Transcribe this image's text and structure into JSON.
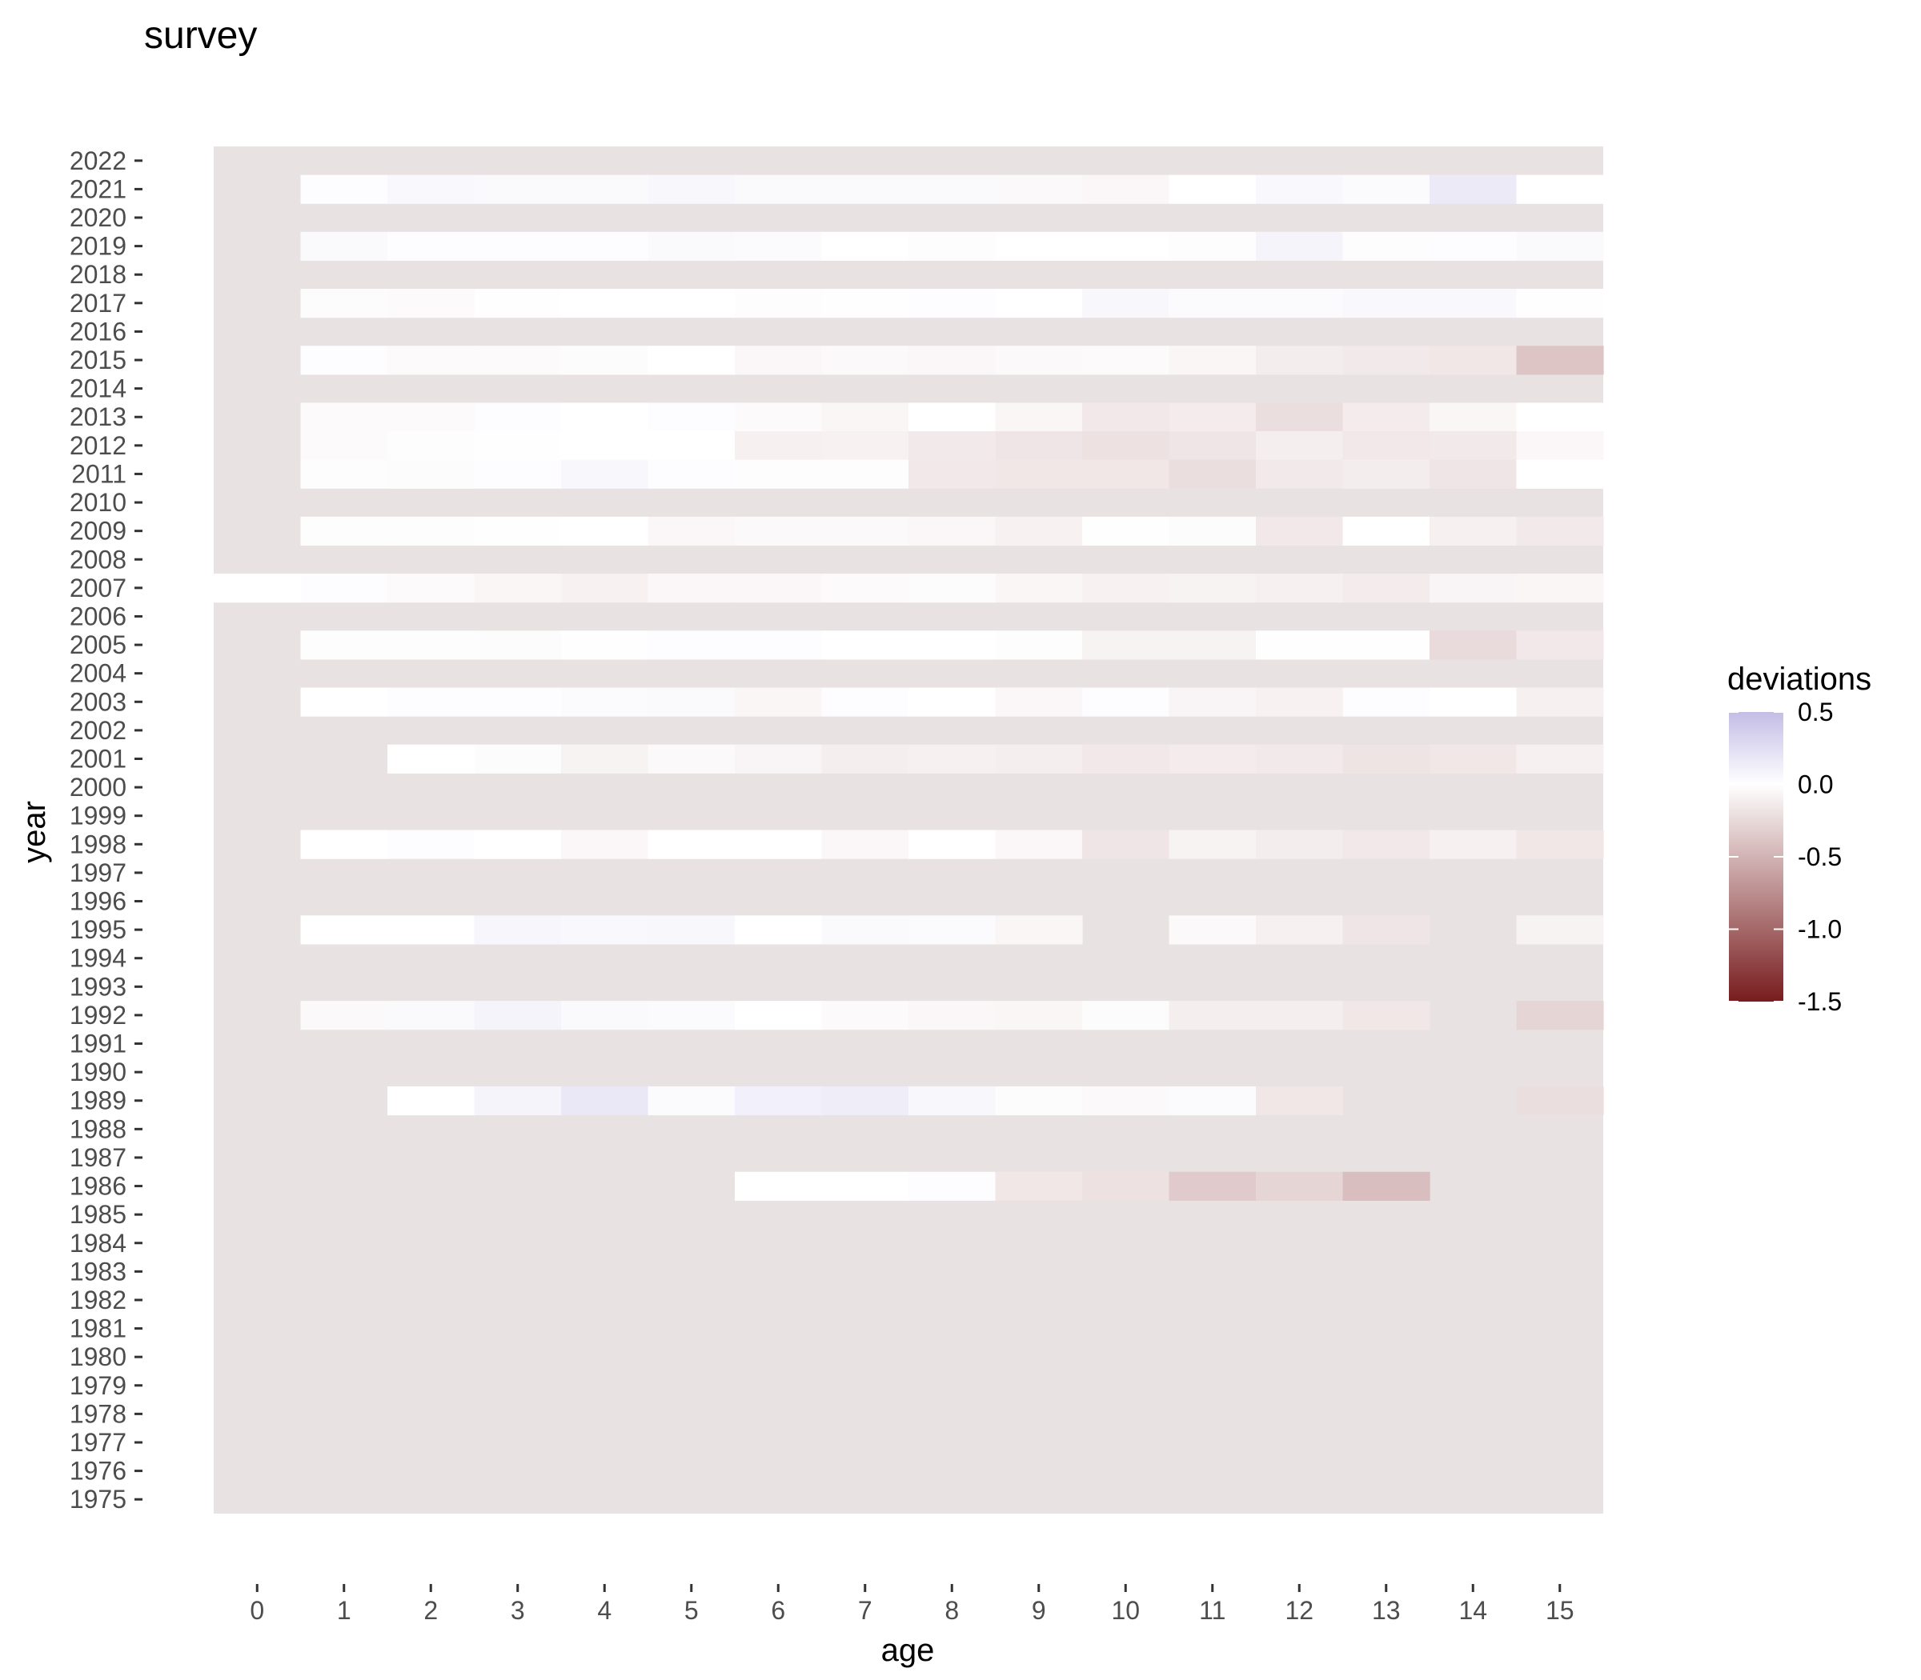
{
  "chart_data": {
    "type": "heatmap",
    "title": "survey",
    "xlabel": "age",
    "ylabel": "year",
    "x": [
      "0",
      "1",
      "2",
      "3",
      "4",
      "5",
      "6",
      "7",
      "8",
      "9",
      "10",
      "11",
      "12",
      "13",
      "14",
      "15"
    ],
    "y_range": [
      1975,
      2022
    ],
    "empty_fill": "#e8e2e2",
    "grid": false,
    "legend": {
      "title": "deviations",
      "placement": "right",
      "range": [
        -1.5,
        0.5
      ],
      "ticks": [
        "0.5",
        "0.0",
        "-0.5",
        "-1.0",
        "-1.5"
      ],
      "tick_values": [
        0.5,
        0.0,
        -0.5,
        -1.0,
        -1.5
      ],
      "colors": {
        "high": "#c4bde6",
        "mid": "#ffffff",
        "low": "#781c1e"
      }
    },
    "rows": [
      {
        "year": 2021,
        "start_age": 1,
        "values": [
          0.02,
          0.05,
          0.04,
          0.04,
          0.06,
          0.04,
          0.04,
          0.04,
          -0.04,
          -0.05,
          0.0,
          0.05,
          0.03,
          0.16,
          0.0
        ]
      },
      {
        "year": 2019,
        "start_age": 1,
        "values": [
          0.04,
          0.02,
          0.02,
          0.02,
          0.04,
          0.03,
          0.0,
          -0.01,
          0.0,
          0.0,
          -0.01,
          0.08,
          -0.01,
          0.02,
          0.04
        ]
      },
      {
        "year": 2017,
        "start_age": 1,
        "values": [
          -0.02,
          -0.03,
          0.01,
          0.0,
          0.0,
          -0.01,
          0.01,
          0.02,
          0.0,
          0.06,
          0.03,
          0.03,
          0.05,
          0.05,
          0.01
        ]
      },
      {
        "year": 2015,
        "start_age": 1,
        "values": [
          0.02,
          -0.03,
          -0.03,
          -0.02,
          0.0,
          -0.05,
          -0.04,
          -0.05,
          -0.04,
          -0.03,
          -0.06,
          -0.12,
          -0.14,
          -0.16,
          -0.38
        ]
      },
      {
        "year": 2013,
        "start_age": 1,
        "values": [
          -0.03,
          -0.03,
          0.02,
          0.0,
          0.02,
          -0.03,
          -0.06,
          0.0,
          -0.06,
          -0.15,
          -0.13,
          -0.22,
          -0.13,
          -0.06,
          0.0
        ]
      },
      {
        "year": 2012,
        "start_age": 1,
        "values": [
          -0.03,
          -0.01,
          0.01,
          0.0,
          0.0,
          -0.1,
          -0.09,
          -0.14,
          -0.17,
          -0.2,
          -0.17,
          -0.11,
          -0.15,
          -0.14,
          -0.05
        ]
      },
      {
        "year": 2011,
        "start_age": 1,
        "values": [
          -0.01,
          -0.02,
          0.02,
          0.06,
          0.02,
          -0.01,
          -0.01,
          -0.15,
          -0.16,
          -0.16,
          -0.22,
          -0.14,
          -0.12,
          -0.17,
          0.0
        ]
      },
      {
        "year": 2009,
        "start_age": 1,
        "values": [
          -0.01,
          -0.01,
          0.01,
          0.0,
          -0.05,
          -0.04,
          -0.04,
          -0.05,
          -0.09,
          0.01,
          -0.02,
          -0.15,
          0.0,
          -0.1,
          -0.14
        ]
      },
      {
        "year": 2007,
        "start_age": 0,
        "values": [
          0.0,
          0.02,
          -0.03,
          -0.06,
          -0.09,
          -0.05,
          -0.05,
          -0.03,
          -0.02,
          -0.06,
          -0.09,
          -0.08,
          -0.1,
          -0.13,
          -0.07,
          -0.06
        ]
      },
      {
        "year": 2005,
        "start_age": 1,
        "values": [
          -0.01,
          -0.01,
          -0.02,
          0.01,
          0.02,
          0.02,
          0.0,
          0.0,
          -0.01,
          -0.08,
          -0.08,
          0.01,
          0.01,
          -0.24,
          -0.15
        ]
      },
      {
        "year": 2003,
        "start_age": 1,
        "values": [
          0.0,
          0.02,
          0.02,
          0.03,
          0.04,
          -0.06,
          0.02,
          0.0,
          -0.05,
          0.02,
          -0.07,
          -0.09,
          0.02,
          0.0,
          -0.1
        ]
      },
      {
        "year": 2001,
        "start_age": 2,
        "values": [
          0.0,
          -0.02,
          -0.08,
          -0.04,
          -0.07,
          -0.11,
          -0.1,
          -0.11,
          -0.15,
          -0.13,
          -0.14,
          -0.18,
          -0.16,
          -0.1
        ]
      },
      {
        "year": 1998,
        "start_age": 1,
        "values": [
          0.0,
          0.02,
          0.0,
          -0.05,
          0.0,
          0.0,
          -0.05,
          0.0,
          -0.05,
          -0.17,
          -0.08,
          -0.12,
          -0.15,
          -0.1,
          -0.16
        ]
      },
      {
        "year": 1995,
        "start_age": 1,
        "values": [
          0.0,
          0.0,
          0.07,
          0.05,
          0.06,
          0.0,
          0.04,
          0.03,
          -0.06,
          null,
          -0.04,
          -0.1,
          -0.17,
          null,
          -0.08
        ]
      },
      {
        "year": 1992,
        "start_age": 1,
        "values": [
          -0.04,
          0.04,
          0.08,
          0.04,
          0.03,
          0.0,
          -0.03,
          -0.05,
          -0.06,
          -0.02,
          -0.11,
          -0.11,
          -0.16,
          null,
          -0.28
        ]
      },
      {
        "year": 1989,
        "start_age": 2,
        "values": [
          0.0,
          0.08,
          0.18,
          0.03,
          0.11,
          0.14,
          0.06,
          -0.02,
          -0.04,
          0.03,
          -0.16,
          null,
          null,
          -0.22
        ]
      },
      {
        "year": 1986,
        "start_age": 6,
        "values": [
          0.0,
          0.0,
          0.02,
          -0.16,
          -0.2,
          -0.35,
          -0.28,
          -0.43
        ]
      }
    ]
  }
}
